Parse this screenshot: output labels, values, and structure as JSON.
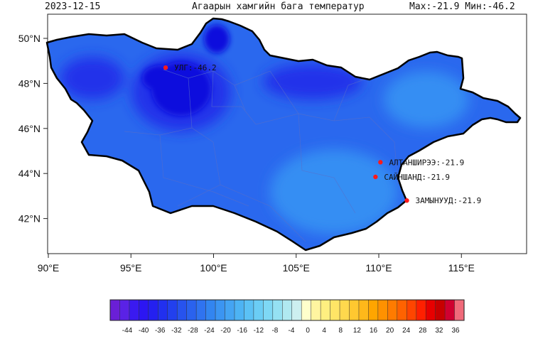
{
  "header": {
    "date": "2023-12-15",
    "title": "Агаарын хамгийн бага температур",
    "max_min": "Max:-21.9 Мин:-46.2"
  },
  "axes": {
    "lon_ticks": [
      "90°E",
      "95°E",
      "100°E",
      "105°E",
      "110°E",
      "115°E"
    ],
    "lat_ticks": [
      "50°N",
      "48°N",
      "46°N",
      "44°N",
      "42°N"
    ]
  },
  "stations": [
    {
      "label": "УЛГ:-46.2",
      "lon": 97.1,
      "lat": 48.7
    },
    {
      "label": "АЛТАНШИРЭЭ:-21.9",
      "lon": 110.1,
      "lat": 44.5
    },
    {
      "label": "САЙНШАНД:-21.9",
      "lon": 109.8,
      "lat": 43.85
    },
    {
      "label": "ЗАМЫНУУД:-21.9",
      "lon": 111.7,
      "lat": 42.8
    }
  ],
  "colorbar": {
    "ticks": [
      "-44",
      "-40",
      "-36",
      "-32",
      "-28",
      "-24",
      "-20",
      "-16",
      "-12",
      "-8",
      "-4",
      "0",
      "4",
      "8",
      "12",
      "16",
      "20",
      "24",
      "28",
      "32",
      "36"
    ],
    "colors": [
      "#6a1fd6",
      "#5a22e6",
      "#3a1af0",
      "#2c16f2",
      "#2420f0",
      "#2130ef",
      "#2240ee",
      "#2753ee",
      "#2a62ee",
      "#2f73f0",
      "#3285f0",
      "#3b95f2",
      "#44a4f3",
      "#4db3f4",
      "#5bc1f5",
      "#6bcdf5",
      "#7ed8f5",
      "#95e1f3",
      "#b0e9f1",
      "#cdeff0",
      "#ffffcc",
      "#fff5a0",
      "#ffef80",
      "#ffe566",
      "#ffd84d",
      "#ffc830",
      "#ffb81a",
      "#ffa500",
      "#ff9100",
      "#ff7b00",
      "#ff6200",
      "#ff4500",
      "#ff2000",
      "#e80000",
      "#c80000",
      "#d00030",
      "#f06a7a"
    ]
  },
  "field_colors": {
    "base": "#2a68ee",
    "cold": "#2030ea",
    "coldest": "#1010dd",
    "warm": "#348ef3"
  },
  "marker_color": "#ff1a1a"
}
